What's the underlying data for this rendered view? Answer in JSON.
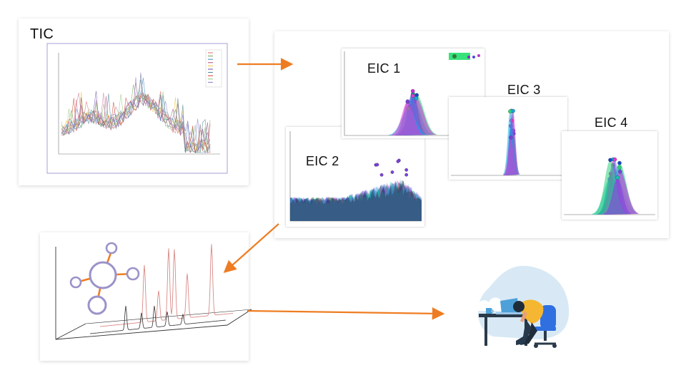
{
  "panels": {
    "tic": {
      "label": "TIC"
    },
    "eic1": {
      "label": "EIC 1"
    },
    "eic2": {
      "label": "EIC 2"
    },
    "eic3": {
      "label": "EIC 3"
    },
    "eic4": {
      "label": "EIC 4"
    }
  },
  "colors": {
    "arrow": "#ee7d22",
    "molecule": "#9b93c9",
    "bond": "#ee7d22",
    "chrom_red": "#d88a86",
    "chrom_black": "#333333"
  },
  "icons": [
    "molecule-icon",
    "tired-worker-illustration"
  ]
}
